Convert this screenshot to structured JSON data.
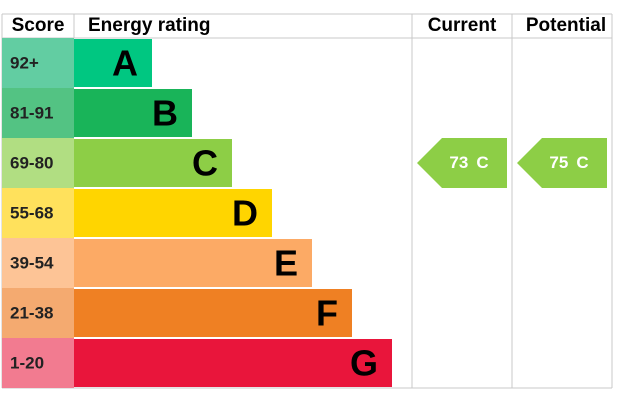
{
  "chart_data": {
    "type": "epc",
    "headers": {
      "score": "Score",
      "rating": "Energy rating",
      "current": "Current",
      "potential": "Potential"
    },
    "bands": [
      {
        "score": "92+",
        "letter": "A",
        "color": "#00c781",
        "score_color": "#62cda2"
      },
      {
        "score": "81-91",
        "letter": "B",
        "color": "#19b459",
        "score_color": "#53c383"
      },
      {
        "score": "69-80",
        "letter": "C",
        "color": "#8dce46",
        "score_color": "#b1de82"
      },
      {
        "score": "55-68",
        "letter": "D",
        "color": "#ffd500",
        "score_color": "#ffe15c"
      },
      {
        "score": "39-54",
        "letter": "E",
        "color": "#fcaa65",
        "score_color": "#fdc496"
      },
      {
        "score": "21-38",
        "letter": "F",
        "color": "#ef8023",
        "score_color": "#f4aa70"
      },
      {
        "score": "1-20",
        "letter": "G",
        "color": "#e9153b",
        "score_color": "#f27b90"
      }
    ],
    "current": {
      "value": 73,
      "letter": "C"
    },
    "potential": {
      "value": 75,
      "letter": "C"
    }
  }
}
